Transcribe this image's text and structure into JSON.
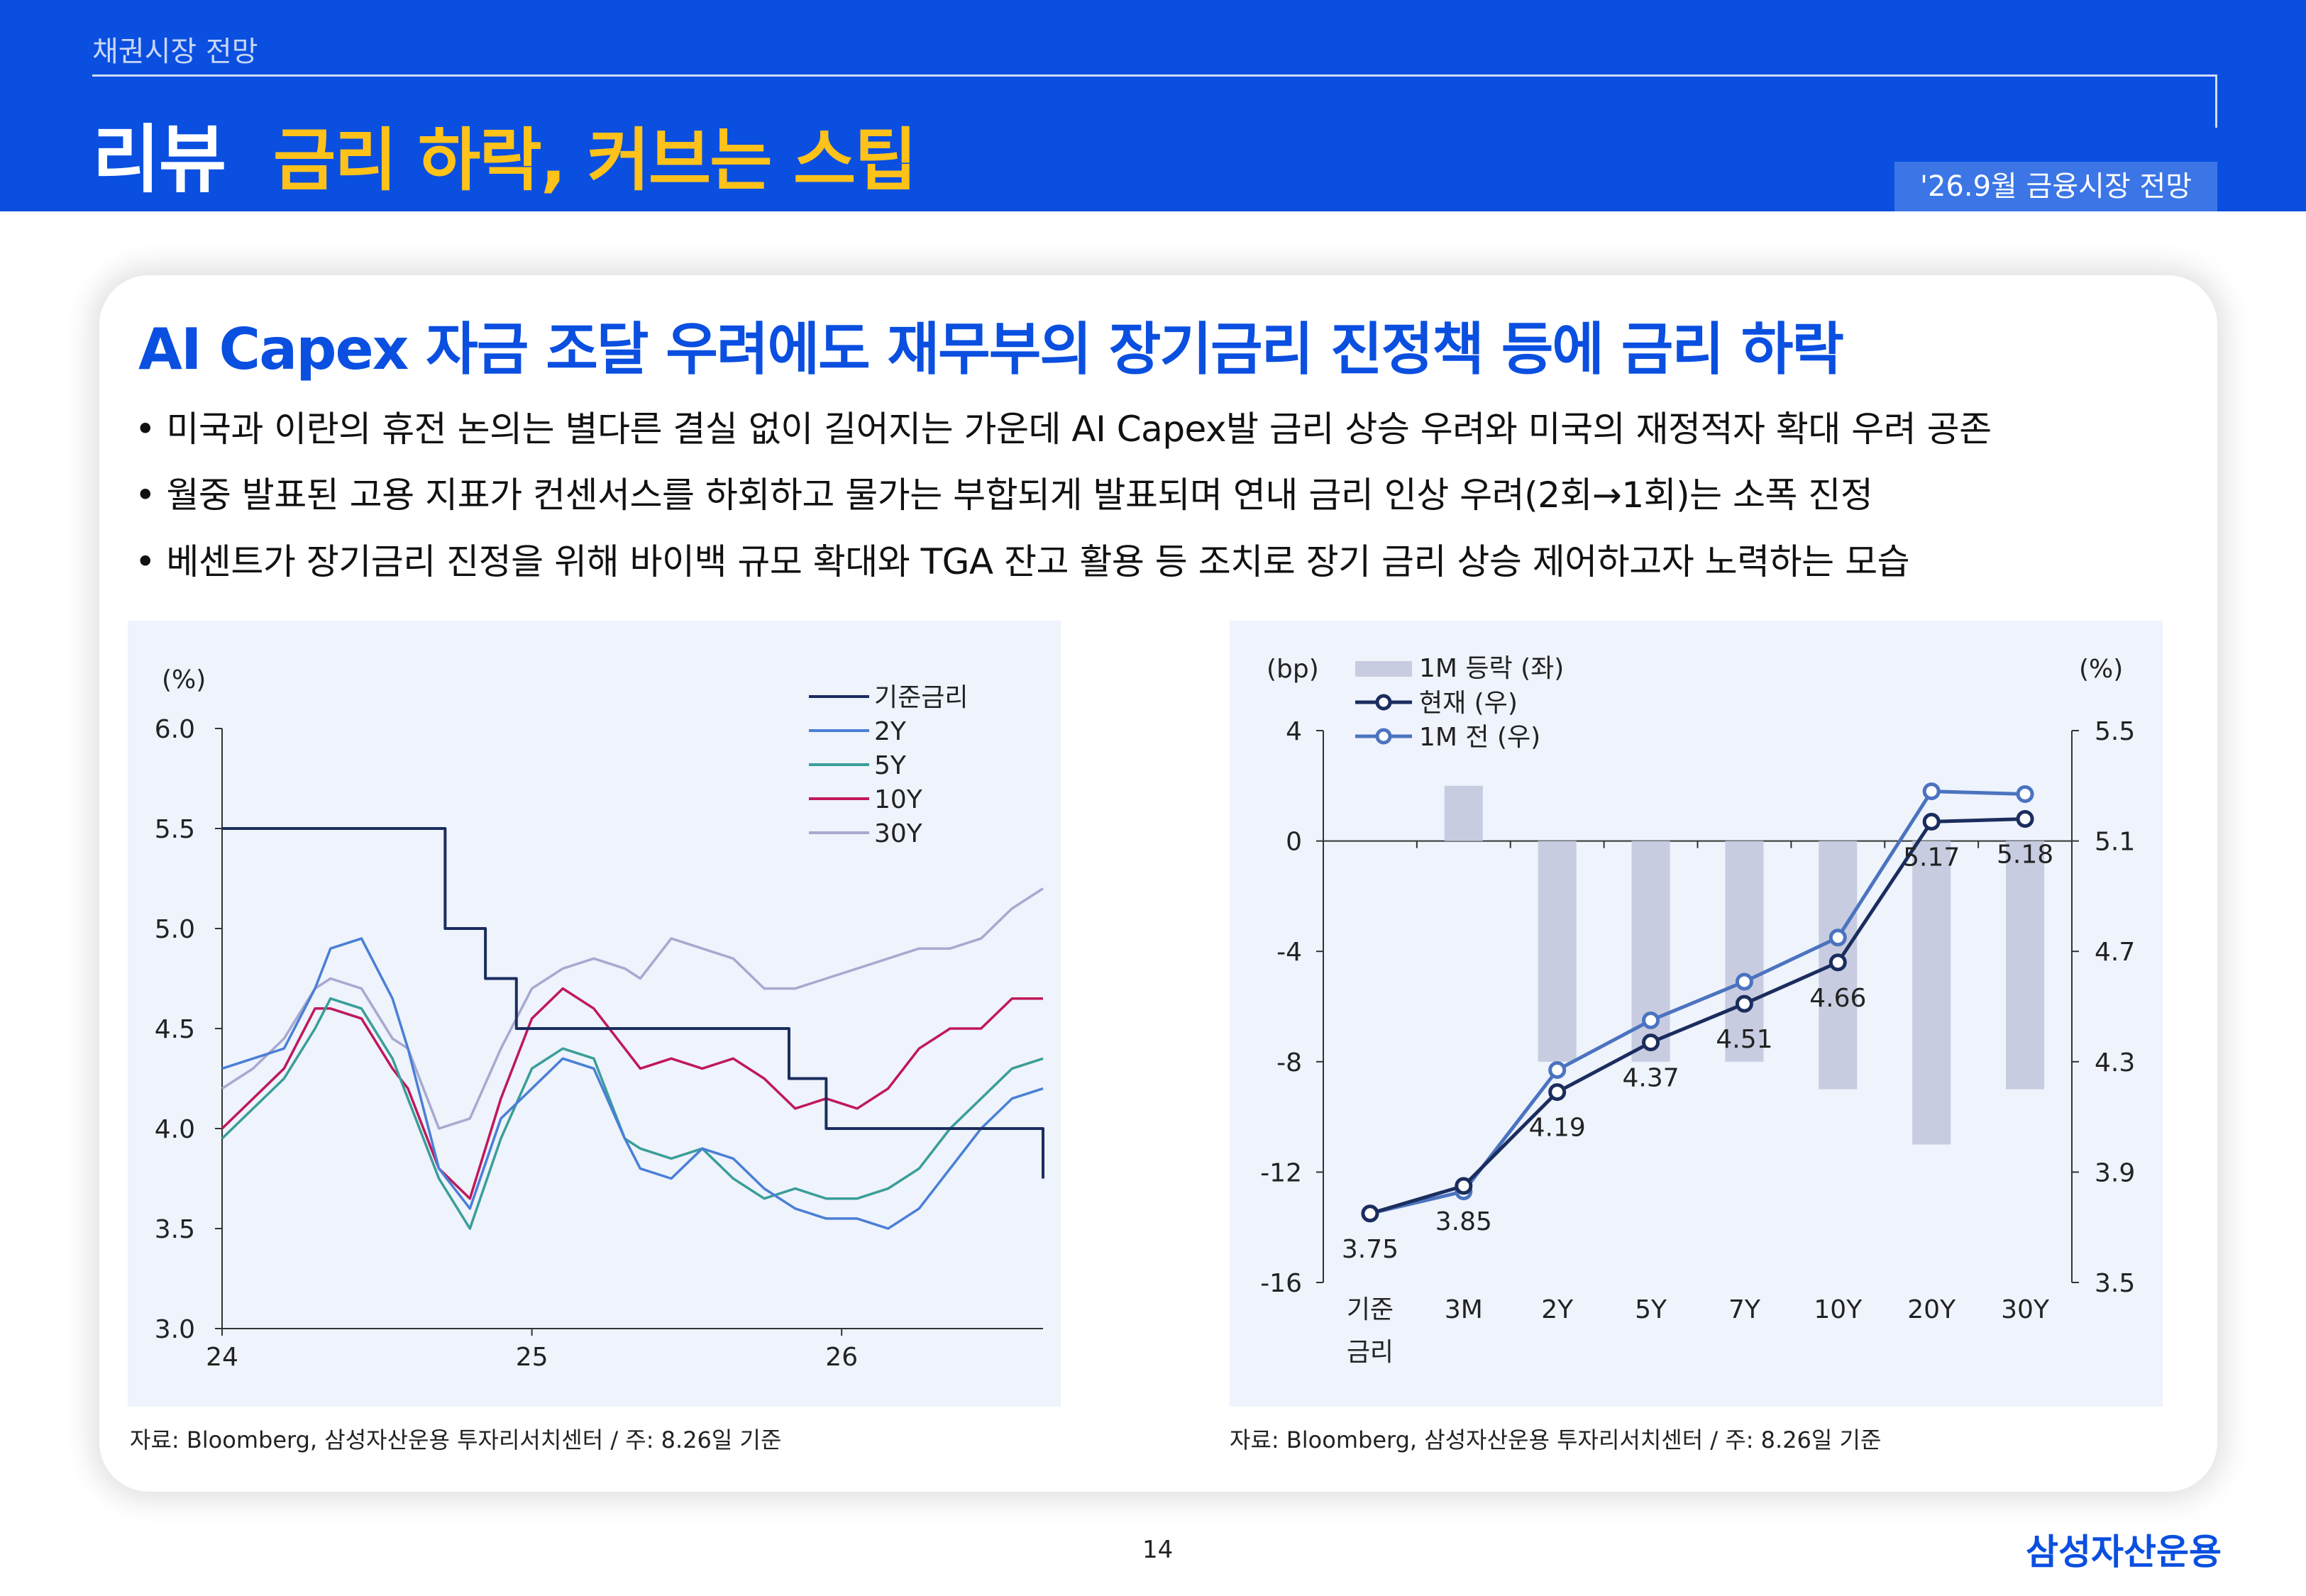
{
  "header": {
    "crumb": "채권시장 전망",
    "main_title": "리뷰",
    "sub_title": "금리 하락, 커브는 스팁",
    "badge": "'26.9월 금융시장 전망"
  },
  "content": {
    "title": "AI Capex 자금 조달 우려에도 재무부의 장기금리 진정책 등에 금리 하락",
    "bullets": [
      "• 미국과 이란의 휴전 논의는 별다른 결실 없이 길어지는 가운데 AI Capex발 금리 상승 우려와 미국의 재정적자 확대 우려 공존",
      "• 월중 발표된 고용 지표가 컨센서스를 하회하고 물가는 부합되게 발표되며 연내 금리 인상 우려(2회→1회)는 소폭 진정",
      "• 베센트가 장기금리 진정을 위해 바이백 규모 확대와 TGA 잔고 활용 등 조치로 장기 금리 상승 제어하고자 노력하는 모습"
    ]
  },
  "source1": "자료: Bloomberg, 삼성자산운용 투자리서치센터 / 주: 8.26일 기준",
  "source2": "자료: Bloomberg, 삼성자산운용 투자리서치센터 / 주: 8.26일 기준",
  "page_number": "14",
  "logo": "삼성자산운용",
  "chart_data": [
    {
      "type": "line",
      "y_unit": "(%)",
      "ylim": [
        3.0,
        6.0
      ],
      "y_ticks": [
        "6.0",
        "5.5",
        "5.0",
        "4.5",
        "4.0",
        "3.5",
        "3.0"
      ],
      "x_ticks": [
        "24",
        "25",
        "26"
      ],
      "xlim": [
        24.0,
        26.65
      ],
      "legend_position": "top-right",
      "series": [
        {
          "name": "기준금리",
          "color": "#1b2d5e",
          "step": true,
          "x": [
            24.0,
            24.71,
            24.72,
            24.83,
            24.85,
            24.95,
            25.71,
            25.83,
            25.95,
            26.65
          ],
          "values": [
            5.5,
            5.5,
            5.0,
            5.0,
            4.75,
            4.5,
            4.5,
            4.25,
            4.0,
            3.75
          ]
        },
        {
          "name": "2Y",
          "color": "#4a7fd6",
          "x": [
            24.0,
            24.1,
            24.2,
            24.3,
            24.35,
            24.45,
            24.55,
            24.6,
            24.7,
            24.8,
            24.9,
            25.0,
            25.1,
            25.2,
            25.3,
            25.35,
            25.45,
            25.55,
            25.65,
            25.75,
            25.85,
            25.95,
            26.05,
            26.15,
            26.25,
            26.35,
            26.45,
            26.55,
            26.65
          ],
          "values": [
            4.3,
            4.35,
            4.4,
            4.7,
            4.9,
            4.95,
            4.65,
            4.4,
            3.8,
            3.6,
            4.05,
            4.2,
            4.35,
            4.3,
            3.95,
            3.8,
            3.75,
            3.9,
            3.85,
            3.7,
            3.6,
            3.55,
            3.55,
            3.5,
            3.6,
            3.8,
            4.0,
            4.15,
            4.2
          ]
        },
        {
          "name": "5Y",
          "color": "#3a9e98",
          "x": [
            24.0,
            24.1,
            24.2,
            24.3,
            24.35,
            24.45,
            24.55,
            24.6,
            24.7,
            24.8,
            24.9,
            25.0,
            25.1,
            25.2,
            25.3,
            25.35,
            25.45,
            25.55,
            25.65,
            25.75,
            25.85,
            25.95,
            26.05,
            26.15,
            26.25,
            26.35,
            26.45,
            26.55,
            26.65
          ],
          "values": [
            3.95,
            4.1,
            4.25,
            4.5,
            4.65,
            4.6,
            4.35,
            4.15,
            3.75,
            3.5,
            3.95,
            4.3,
            4.4,
            4.35,
            3.95,
            3.9,
            3.85,
            3.9,
            3.75,
            3.65,
            3.7,
            3.65,
            3.65,
            3.7,
            3.8,
            4.0,
            4.15,
            4.3,
            4.35
          ]
        },
        {
          "name": "10Y",
          "color": "#c0185a",
          "x": [
            24.0,
            24.1,
            24.2,
            24.3,
            24.35,
            24.45,
            24.55,
            24.6,
            24.7,
            24.8,
            24.9,
            25.0,
            25.1,
            25.2,
            25.3,
            25.35,
            25.45,
            25.55,
            25.65,
            25.75,
            25.85,
            25.95,
            26.05,
            26.15,
            26.25,
            26.35,
            26.45,
            26.55,
            26.65
          ],
          "values": [
            4.0,
            4.15,
            4.3,
            4.6,
            4.6,
            4.55,
            4.3,
            4.2,
            3.8,
            3.65,
            4.15,
            4.55,
            4.7,
            4.6,
            4.4,
            4.3,
            4.35,
            4.3,
            4.35,
            4.25,
            4.1,
            4.15,
            4.1,
            4.2,
            4.4,
            4.5,
            4.5,
            4.65,
            4.65
          ]
        },
        {
          "name": "30Y",
          "color": "#a7a9cf",
          "x": [
            24.0,
            24.1,
            24.2,
            24.3,
            24.35,
            24.45,
            24.55,
            24.6,
            24.7,
            24.8,
            24.9,
            25.0,
            25.1,
            25.2,
            25.3,
            25.35,
            25.45,
            25.55,
            25.65,
            25.75,
            25.85,
            25.95,
            26.05,
            26.15,
            26.25,
            26.35,
            26.45,
            26.55,
            26.65
          ],
          "values": [
            4.2,
            4.3,
            4.45,
            4.7,
            4.75,
            4.7,
            4.45,
            4.4,
            4.0,
            4.05,
            4.4,
            4.7,
            4.8,
            4.85,
            4.8,
            4.75,
            4.95,
            4.9,
            4.85,
            4.7,
            4.7,
            4.75,
            4.8,
            4.85,
            4.9,
            4.9,
            4.95,
            5.1,
            5.2
          ]
        }
      ]
    },
    {
      "type": "bar",
      "categories": [
        "기준\n금리",
        "3M",
        "2Y",
        "5Y",
        "7Y",
        "10Y",
        "20Y",
        "30Y"
      ],
      "left_unit": "(bp)",
      "right_unit": "(%)",
      "left_ylim": [
        -16,
        4
      ],
      "right_ylim": [
        3.5,
        5.5
      ],
      "left_ticks": [
        "4",
        "0",
        "-4",
        "-8",
        "-12",
        "-16"
      ],
      "right_ticks": [
        "5.5",
        "5.1",
        "4.7",
        "4.3",
        "3.9",
        "3.5"
      ],
      "legend_position": "top-left",
      "series": [
        {
          "name": "1M 등락 (좌)",
          "type": "bar",
          "axis": "left",
          "color": "#c8cce0",
          "values": [
            0,
            2,
            -8,
            -8,
            -8,
            -9,
            -11,
            -9
          ]
        },
        {
          "name": "현재 (우)",
          "type": "line",
          "axis": "right",
          "color": "#1b2d5e",
          "values": [
            3.75,
            3.85,
            4.19,
            4.37,
            4.51,
            4.66,
            5.17,
            5.18
          ]
        },
        {
          "name": "1M 전 (우)",
          "type": "line",
          "axis": "right",
          "color": "#4b73c0",
          "values": [
            3.75,
            3.83,
            4.27,
            4.45,
            4.59,
            4.75,
            5.28,
            5.27
          ]
        }
      ],
      "data_labels": [
        "3.75",
        "3.85",
        "4.19",
        "4.37",
        "4.51",
        "4.66",
        "5.17",
        "5.18"
      ]
    }
  ]
}
